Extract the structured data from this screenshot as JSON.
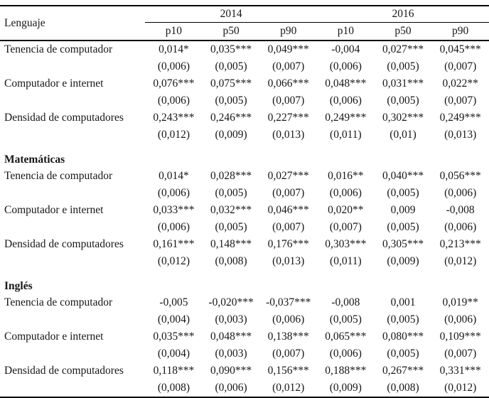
{
  "table": {
    "year_groups": [
      "2014",
      "2016"
    ],
    "subheaders": [
      "p10",
      "p50",
      "p90",
      "p10",
      "p50",
      "p90"
    ],
    "sections": [
      {
        "label": "Lenguaje",
        "rows": [
          {
            "name": "Tenencia de computador",
            "coefs": [
              "0,014*",
              "0,035***",
              "0,049***",
              "-0,004",
              "0,027***",
              "0,045***"
            ],
            "ses": [
              "(0,006)",
              "(0,005)",
              "(0,007)",
              "(0,006)",
              "(0,005)",
              "(0,007)"
            ]
          },
          {
            "name": "Computador e internet",
            "coefs": [
              "0,076***",
              "0,075***",
              "0,066***",
              "0,048***",
              "0,031***",
              "0,022**"
            ],
            "ses": [
              "(0,006)",
              "(0,005)",
              "(0,007)",
              "(0,006)",
              "(0,005)",
              "(0,007)"
            ]
          },
          {
            "name": "Densidad de computadores",
            "coefs": [
              "0,243***",
              "0,246***",
              "0,227***",
              "0,249***",
              "0,302***",
              "0,249***"
            ],
            "ses": [
              "(0,012)",
              "(0,009)",
              "(0,013)",
              "(0,011)",
              "(0,01)",
              "(0,013)"
            ]
          }
        ]
      },
      {
        "label": "Matemáticas",
        "rows": [
          {
            "name": "Tenencia de computador",
            "coefs": [
              "0,014*",
              "0,028***",
              "0,027***",
              "0,016**",
              "0,040***",
              "0,056***"
            ],
            "ses": [
              "(0,006)",
              "(0,005)",
              "(0,007)",
              "(0,006)",
              "(0,005)",
              "(0,006)"
            ]
          },
          {
            "name": "Computador e internet",
            "coefs": [
              "0,033***",
              "0,032***",
              "0,046***",
              "0,020**",
              "0,009",
              "-0,008"
            ],
            "ses": [
              "(0,006)",
              "(0,005)",
              "(0,007)",
              "(0,007)",
              "(0,005)",
              "(0,006)"
            ]
          },
          {
            "name": "Densidad de computadores",
            "coefs": [
              "0,161***",
              "0,148***",
              "0,176***",
              "0,303***",
              "0,305***",
              "0,213***"
            ],
            "ses": [
              "(0,012)",
              "(0,008)",
              "(0,013)",
              "(0,011)",
              "(0,009)",
              "(0,012)"
            ]
          }
        ]
      },
      {
        "label": "Inglés",
        "rows": [
          {
            "name": "Tenencia de computador",
            "coefs": [
              "-0,005",
              "-0,020***",
              "-0,037***",
              "-0,008",
              "0,001",
              "0,019**"
            ],
            "ses": [
              "(0,004)",
              "(0,003)",
              "(0,006)",
              "(0,005)",
              "(0,005)",
              "(0,006)"
            ]
          },
          {
            "name": "Computador e internet",
            "coefs": [
              "0,035***",
              "0,048***",
              "0,138***",
              "0,065***",
              "0,080***",
              "0,109***"
            ],
            "ses": [
              "(0,004)",
              "(0,003)",
              "(0,007)",
              "(0,006)",
              "(0,005)",
              "(0,007)"
            ]
          },
          {
            "name": "Densidad de computadores",
            "coefs": [
              "0,118***",
              "0,090***",
              "0,156***",
              "0,188***",
              "0,267***",
              "0,331***"
            ],
            "ses": [
              "(0,008)",
              "(0,006)",
              "(0,012)",
              "(0,009)",
              "(0,008)",
              "(0,012)"
            ]
          }
        ]
      }
    ]
  }
}
